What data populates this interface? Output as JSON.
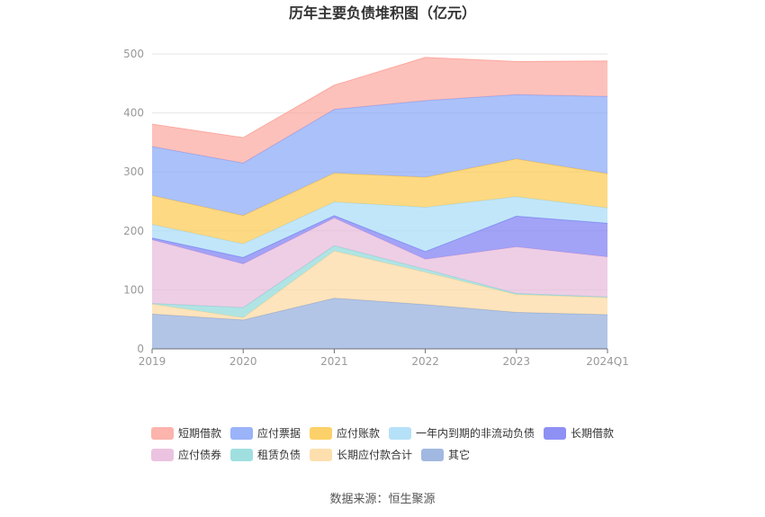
{
  "chart_data": {
    "type": "area",
    "stacked": true,
    "title": "历年主要负债堆积图（亿元）",
    "categories": [
      "2019",
      "2020",
      "2021",
      "2022",
      "2023",
      "2024Q1"
    ],
    "ylim": [
      0,
      500
    ],
    "yticks": [
      0,
      100,
      200,
      300,
      400,
      500
    ],
    "grid": true,
    "legend_position": "bottom",
    "series": [
      {
        "name": "其它",
        "color": "#91acdc",
        "values": [
          59,
          49,
          86,
          75,
          62,
          58
        ]
      },
      {
        "name": "长期应付款合计",
        "color": "#fdd9a0",
        "values": [
          17,
          4,
          80,
          55,
          30,
          29
        ]
      },
      {
        "name": "租赁负债",
        "color": "#8fd9d9",
        "values": [
          1,
          17,
          9,
          5,
          2,
          1
        ]
      },
      {
        "name": "应付债券",
        "color": "#e7b9da",
        "values": [
          108,
          74,
          47,
          17,
          79,
          68
        ]
      },
      {
        "name": "长期借款",
        "color": "#7b7cf2",
        "values": [
          3,
          11,
          4,
          13,
          52,
          57
        ]
      },
      {
        "name": "一年内到期的非流动负债",
        "color": "#a8dcf7",
        "values": [
          23,
          23,
          23,
          75,
          33,
          26
        ]
      },
      {
        "name": "应付账款",
        "color": "#fdc94f",
        "values": [
          49,
          48,
          49,
          51,
          64,
          58
        ]
      },
      {
        "name": "应付票据",
        "color": "#88a6f8",
        "values": [
          83,
          89,
          108,
          130,
          109,
          131
        ]
      },
      {
        "name": "短期借款",
        "color": "#fca79e",
        "values": [
          38,
          43,
          41,
          73,
          56,
          60
        ]
      }
    ],
    "legend_order": [
      "短期借款",
      "应付票据",
      "应付账款",
      "一年内到期的非流动负债",
      "长期借款",
      "应付债券",
      "租赁负债",
      "长期应付款合计",
      "其它"
    ],
    "source": "数据来源：恒生聚源"
  }
}
